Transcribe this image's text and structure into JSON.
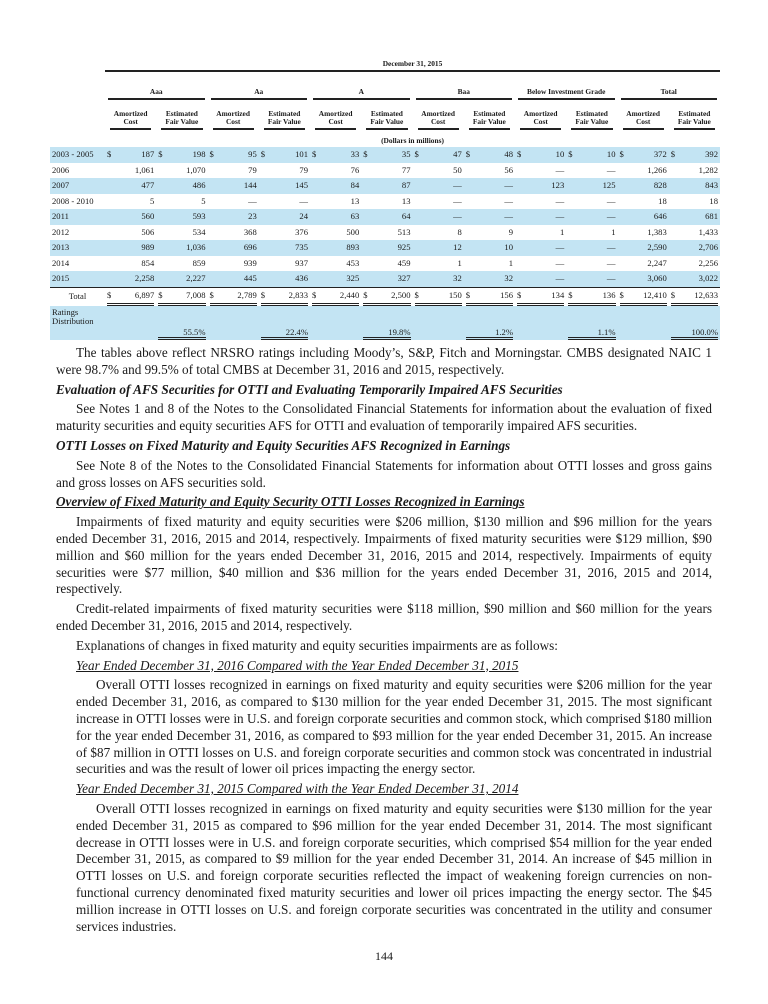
{
  "table": {
    "caption": "December 31, 2015",
    "groups": [
      "Aaa",
      "Aa",
      "A",
      "Baa",
      "Below Investment Grade",
      "Total"
    ],
    "sub": [
      "Amortized Cost",
      "Estimated Fair Value"
    ],
    "units": "(Dollars in millions)",
    "rows": [
      {
        "label": "2003 - 2005",
        "dollar": true,
        "v": [
          "187",
          "198",
          "95",
          "101",
          "33",
          "35",
          "47",
          "48",
          "10",
          "10",
          "372",
          "392"
        ]
      },
      {
        "label": "2006",
        "v": [
          "1,061",
          "1,070",
          "79",
          "79",
          "76",
          "77",
          "50",
          "56",
          "—",
          "—",
          "1,266",
          "1,282"
        ]
      },
      {
        "label": "2007",
        "v": [
          "477",
          "486",
          "144",
          "145",
          "84",
          "87",
          "—",
          "—",
          "123",
          "125",
          "828",
          "843"
        ]
      },
      {
        "label": "2008 - 2010",
        "v": [
          "5",
          "5",
          "—",
          "—",
          "13",
          "13",
          "—",
          "—",
          "—",
          "—",
          "18",
          "18"
        ]
      },
      {
        "label": "2011",
        "v": [
          "560",
          "593",
          "23",
          "24",
          "63",
          "64",
          "—",
          "—",
          "—",
          "—",
          "646",
          "681"
        ]
      },
      {
        "label": "2012",
        "v": [
          "506",
          "534",
          "368",
          "376",
          "500",
          "513",
          "8",
          "9",
          "1",
          "1",
          "1,383",
          "1,433"
        ]
      },
      {
        "label": "2013",
        "v": [
          "989",
          "1,036",
          "696",
          "735",
          "893",
          "925",
          "12",
          "10",
          "—",
          "—",
          "2,590",
          "2,706"
        ]
      },
      {
        "label": "2014",
        "v": [
          "854",
          "859",
          "939",
          "937",
          "453",
          "459",
          "1",
          "1",
          "—",
          "—",
          "2,247",
          "2,256"
        ]
      },
      {
        "label": "2015",
        "v": [
          "2,258",
          "2,227",
          "445",
          "436",
          "325",
          "327",
          "32",
          "32",
          "—",
          "—",
          "3,060",
          "3,022"
        ]
      }
    ],
    "total": {
      "label": "Total",
      "v": [
        "6,897",
        "7,008",
        "2,789",
        "2,833",
        "2,440",
        "2,500",
        "150",
        "156",
        "134",
        "136",
        "12,410",
        "12,633"
      ]
    },
    "ratings": {
      "label": "Ratings Distribution",
      "v": [
        "55.5%",
        "22.4%",
        "19.8%",
        "1.2%",
        "1.1%",
        "100.0%"
      ]
    }
  },
  "text": {
    "p1": "The tables above reflect NRSRO ratings including Moody’s, S&P, Fitch and Morningstar. CMBS designated NAIC 1 were 98.7% and 99.5% of total CMBS at December 31, 2016 and 2015, respectively.",
    "h1": "Evaluation of AFS Securities for OTTI and Evaluating Temporarily Impaired AFS Securities",
    "p2": "See Notes 1 and 8 of the Notes to the Consolidated Financial Statements for information about the evaluation of fixed maturity securities and equity securities AFS for OTTI and evaluation of temporarily impaired AFS securities.",
    "h2": "OTTI Losses on Fixed Maturity and Equity Securities AFS Recognized in Earnings",
    "p3": "See Note 8 of the Notes to the Consolidated Financial Statements for information about OTTI losses and gross gains and gross losses on AFS securities sold.",
    "h3": "Overview of Fixed Maturity and Equity Security OTTI Losses Recognized in Earnings",
    "p4": "Impairments of fixed maturity and equity securities were $206 million, $130 million and $96 million for the years ended December 31, 2016, 2015 and 2014, respectively. Impairments of fixed maturity securities were $129 million, $90 million and $60 million for the years ended December 31, 2016, 2015 and 2014, respectively. Impairments of equity securities were $77 million, $40 million and $36 million for the years ended December 31, 2016, 2015 and 2014, respectively.",
    "p5": "Credit-related impairments of fixed maturity securities were $118 million, $90 million and $60 million for the years ended December 31, 2016, 2015 and 2014, respectively.",
    "p6": "Explanations of changes in fixed maturity and equity securities impairments are as follows:",
    "h4": "Year Ended December 31, 2016 Compared with the Year Ended December 31, 2015",
    "p7": "Overall OTTI losses recognized in earnings on fixed maturity and equity securities were $206 million for the year ended December 31, 2016, as compared to $130 million for the year ended December 31, 2015. The most significant increase in OTTI losses were in U.S. and foreign corporate securities and common stock, which comprised $180 million for the year ended December 31, 2016, as compared to $93 million for the year ended December 31, 2015. An increase of $87 million in OTTI losses on U.S. and foreign corporate securities and common stock was concentrated in industrial securities and was the result of lower oil prices impacting the energy sector.",
    "h5": "Year Ended December 31, 2015 Compared with the Year Ended December 31, 2014",
    "p8": "Overall OTTI losses recognized in earnings on fixed maturity and equity securities were $130 million for the year ended December 31, 2015 as compared to $96 million for the year ended December 31, 2014. The most significant decrease in OTTI losses were in U.S. and foreign corporate securities, which comprised $54 million for the year ended December 31, 2015, as compared to $9 million for the year ended December 31, 2014. An increase of $45 million in OTTI losses on U.S. and foreign corporate securities reflected the impact of weakening foreign currencies on non-functional currency denominated fixed maturity securities and lower oil prices impacting the energy sector. The $45 million increase in OTTI losses on U.S. and foreign corporate securities was concentrated in the utility and consumer services industries."
  },
  "page_number": "144",
  "colors": {
    "row_shade": "#c3e4f3"
  }
}
